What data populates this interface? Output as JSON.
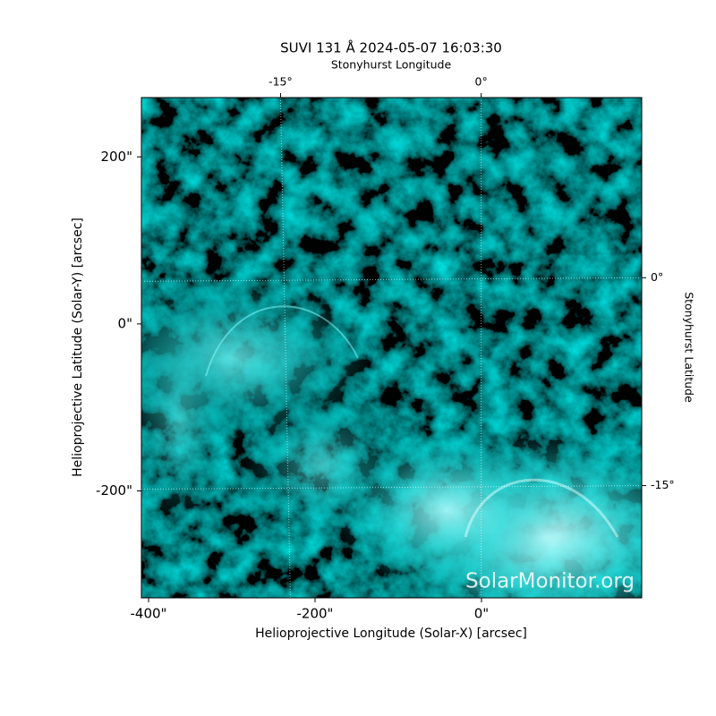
{
  "chart_data": {
    "type": "image",
    "title": "SUVI 131 Å 2024-05-07 16:03:30",
    "x_label": "Helioprojective Longitude (Solar-X) [arcsec]",
    "y_label": "Helioprojective Latitude (Solar-Y) [arcsec]",
    "x2_label": "Stonyhurst Longitude",
    "y2_label": "Stonyhurst Latitude",
    "watermark": "SolarMonitor.org",
    "xlim": [
      -408.6,
      192.5
    ],
    "ylim": [
      -328,
      271
    ],
    "xticks": [
      {
        "value": -400,
        "label": "-400\""
      },
      {
        "value": -200,
        "label": "-200\""
      },
      {
        "value": 0,
        "label": "0\""
      }
    ],
    "yticks": [
      {
        "value": 200,
        "label": "200\""
      },
      {
        "value": 0,
        "label": "0\""
      },
      {
        "value": -200,
        "label": "-200\""
      }
    ],
    "x2lim": [
      -25.4,
      12.0
    ],
    "x2ticks": [
      {
        "value": -15,
        "label": "-15°"
      },
      {
        "value": 0,
        "label": "0°"
      }
    ],
    "y2lim": [
      -23.1,
      13.0
    ],
    "y2ticks": [
      {
        "value": 0,
        "label": "0°"
      },
      {
        "value": -15,
        "label": "-15°"
      }
    ],
    "grid": true,
    "color": "#00e5e5"
  }
}
